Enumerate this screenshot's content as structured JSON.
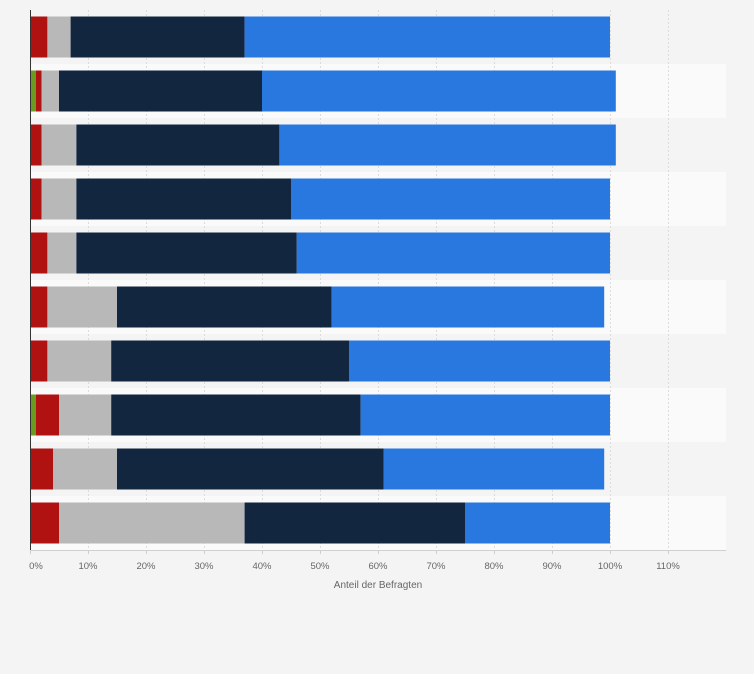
{
  "chart_data": {
    "type": "bar",
    "orientation": "horizontal",
    "stacked": true,
    "xlabel": "Anteil der Befragten",
    "xlim": [
      0,
      120
    ],
    "x_ticks": [
      0,
      10,
      20,
      30,
      40,
      50,
      60,
      70,
      80,
      90,
      100,
      110
    ],
    "x_tick_labels": [
      "0%",
      "10%",
      "20%",
      "30%",
      "40%",
      "50%",
      "60%",
      "70%",
      "80%",
      "90%",
      "100%",
      "110%"
    ],
    "grid": true,
    "legend": "none",
    "categories": [
      "",
      "",
      "",
      "",
      "",
      "",
      "",
      "",
      "",
      ""
    ],
    "series": [
      {
        "color": "#6a9a1f",
        "values": [
          0,
          1,
          0,
          0,
          0,
          0,
          0,
          1,
          0,
          0
        ]
      },
      {
        "color": "#b01111",
        "values": [
          3,
          1,
          2,
          2,
          3,
          3,
          3,
          4,
          4,
          5
        ]
      },
      {
        "color": "#b8b8b8",
        "values": [
          4,
          3,
          6,
          6,
          5,
          12,
          11,
          9,
          11,
          32
        ]
      },
      {
        "color": "#13263f",
        "values": [
          30,
          35,
          35,
          37,
          38,
          37,
          41,
          43,
          46,
          38
        ]
      },
      {
        "color": "#2878e0",
        "values": [
          63,
          61,
          58,
          55,
          54,
          47,
          45,
          43,
          38,
          25
        ]
      }
    ]
  }
}
